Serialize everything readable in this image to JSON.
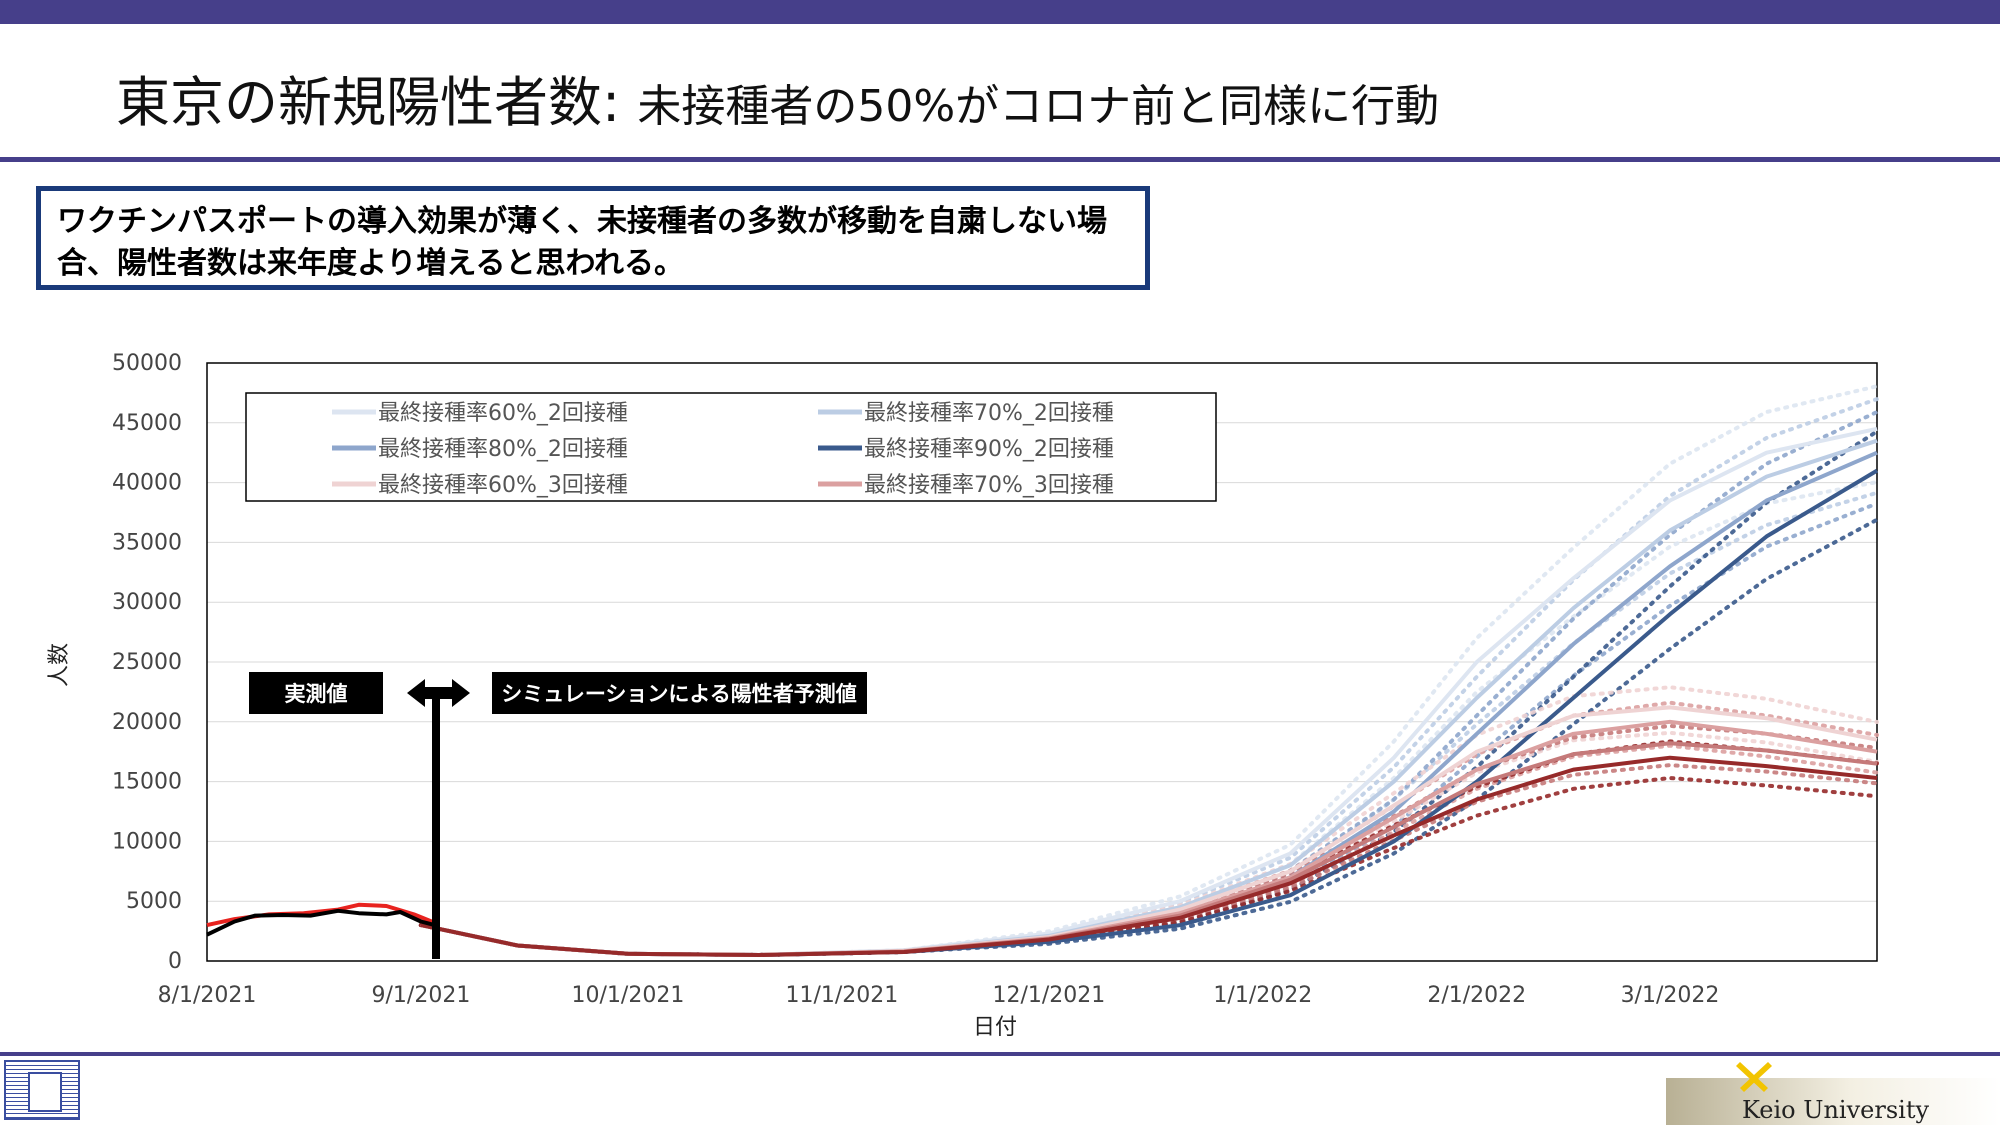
{
  "title": {
    "main": "東京の新規陽性者数: ",
    "sub": "未接種者の50%がコロナ前と同様に行動"
  },
  "callout": {
    "line1": "ワクチンパスポートの導入効果が薄く、未接種者の多数が移動を自粛しない場",
    "line2": "合、陽性者数は来年度より増えると思われる。"
  },
  "labels": {
    "measured": "実測値",
    "simulation": "シミュレーションによる陽性者予測値"
  },
  "footer": {
    "university": "Keio University"
  },
  "colors": {
    "accent_bar": "#463f8a",
    "callout_border": "#1a3a7a",
    "actual_red": "#e8231f",
    "actual_black": "#000000"
  },
  "chart_data": {
    "type": "line",
    "xlabel": "日付",
    "ylabel": "人数",
    "x_start": "2021-08-01",
    "x_end": "2022-03-31",
    "xticks": [
      "8/1/2021",
      "9/1/2021",
      "10/1/2021",
      "11/1/2021",
      "12/1/2021",
      "1/1/2022",
      "2/1/2022",
      "3/1/2022"
    ],
    "yticks": [
      0,
      5000,
      10000,
      15000,
      20000,
      25000,
      30000,
      35000,
      40000,
      45000,
      50000
    ],
    "ylim": [
      0,
      50000
    ],
    "grid": "horizontal",
    "legend_position": "top-left",
    "actual": [
      {
        "color": "#e8231f",
        "points": [
          [
            "2021-08-01",
            3000
          ],
          [
            "2021-08-05",
            3500
          ],
          [
            "2021-08-10",
            3900
          ],
          [
            "2021-08-15",
            4000
          ],
          [
            "2021-08-20",
            4300
          ],
          [
            "2021-08-23",
            4700
          ],
          [
            "2021-08-27",
            4600
          ],
          [
            "2021-08-31",
            3900
          ],
          [
            "2021-09-03",
            3200
          ]
        ]
      },
      {
        "color": "#000000",
        "points": [
          [
            "2021-08-01",
            2200
          ],
          [
            "2021-08-05",
            3300
          ],
          [
            "2021-08-08",
            3800
          ],
          [
            "2021-08-12",
            3850
          ],
          [
            "2021-08-16",
            3800
          ],
          [
            "2021-08-20",
            4200
          ],
          [
            "2021-08-23",
            4000
          ],
          [
            "2021-08-27",
            3900
          ],
          [
            "2021-08-29",
            4100
          ],
          [
            "2021-09-01",
            3300
          ],
          [
            "2021-09-03",
            3000
          ]
        ]
      }
    ],
    "series": [
      {
        "name": "最終接種率60%_2回接種",
        "color": "#dde5f1",
        "points": [
          [
            "2021-09-01",
            3000
          ],
          [
            "2021-09-15",
            1300
          ],
          [
            "2021-10-01",
            600
          ],
          [
            "2021-10-20",
            500
          ],
          [
            "2021-11-10",
            900
          ],
          [
            "2021-12-01",
            2300
          ],
          [
            "2021-12-20",
            5000
          ],
          [
            "2022-01-05",
            9000
          ],
          [
            "2022-01-20",
            17000
          ],
          [
            "2022-02-01",
            25000
          ],
          [
            "2022-02-15",
            32000
          ],
          [
            "2022-03-01",
            38500
          ],
          [
            "2022-03-15",
            42500
          ],
          [
            "2022-03-31",
            44500
          ]
        ]
      },
      {
        "name": "最終接種率70%_2回接種",
        "color": "#bccde4",
        "points": [
          [
            "2021-09-01",
            3000
          ],
          [
            "2021-09-15",
            1300
          ],
          [
            "2021-10-01",
            600
          ],
          [
            "2021-10-20",
            500
          ],
          [
            "2021-11-10",
            850
          ],
          [
            "2021-12-01",
            2100
          ],
          [
            "2021-12-20",
            4500
          ],
          [
            "2022-01-05",
            8000
          ],
          [
            "2022-01-20",
            15000
          ],
          [
            "2022-02-01",
            22000
          ],
          [
            "2022-02-15",
            29500
          ],
          [
            "2022-03-01",
            36000
          ],
          [
            "2022-03-15",
            40500
          ],
          [
            "2022-03-31",
            43500
          ]
        ]
      },
      {
        "name": "最終接種率80%_2回接種",
        "color": "#8ea6cc",
        "points": [
          [
            "2021-09-01",
            3000
          ],
          [
            "2021-09-15",
            1300
          ],
          [
            "2021-10-01",
            600
          ],
          [
            "2021-10-20",
            500
          ],
          [
            "2021-11-10",
            800
          ],
          [
            "2021-12-01",
            1900
          ],
          [
            "2021-12-20",
            3800
          ],
          [
            "2022-01-05",
            7000
          ],
          [
            "2022-01-20",
            12500
          ],
          [
            "2022-02-01",
            19000
          ],
          [
            "2022-02-15",
            26500
          ],
          [
            "2022-03-01",
            33000
          ],
          [
            "2022-03-15",
            38500
          ],
          [
            "2022-03-31",
            42500
          ]
        ]
      },
      {
        "name": "最終接種率90%_2回接種",
        "color": "#3a5a8c",
        "points": [
          [
            "2021-09-01",
            3000
          ],
          [
            "2021-09-15",
            1300
          ],
          [
            "2021-10-01",
            600
          ],
          [
            "2021-10-20",
            500
          ],
          [
            "2021-11-10",
            750
          ],
          [
            "2021-12-01",
            1600
          ],
          [
            "2021-12-20",
            3000
          ],
          [
            "2022-01-05",
            5500
          ],
          [
            "2022-01-20",
            10000
          ],
          [
            "2022-02-01",
            15000
          ],
          [
            "2022-02-15",
            22000
          ],
          [
            "2022-03-01",
            29000
          ],
          [
            "2022-03-15",
            35500
          ],
          [
            "2022-03-31",
            41000
          ]
        ]
      },
      {
        "name": "最終接種率60%_3回接種",
        "color": "#efd3d3",
        "points": [
          [
            "2021-09-01",
            3000
          ],
          [
            "2021-09-15",
            1300
          ],
          [
            "2021-10-01",
            600
          ],
          [
            "2021-10-20",
            500
          ],
          [
            "2021-11-10",
            850
          ],
          [
            "2021-12-01",
            2000
          ],
          [
            "2021-12-20",
            4300
          ],
          [
            "2022-01-05",
            7500
          ],
          [
            "2022-01-20",
            13000
          ],
          [
            "2022-02-01",
            17500
          ],
          [
            "2022-02-15",
            20500
          ],
          [
            "2022-03-01",
            21200
          ],
          [
            "2022-03-15",
            20300
          ],
          [
            "2022-03-31",
            18500
          ]
        ]
      },
      {
        "name": "最終接種率70%_3回接種",
        "color": "#dba0a0",
        "points": [
          [
            "2021-09-01",
            3000
          ],
          [
            "2021-09-15",
            1300
          ],
          [
            "2021-10-01",
            600
          ],
          [
            "2021-10-20",
            500
          ],
          [
            "2021-11-10",
            800
          ],
          [
            "2021-12-01",
            1900
          ],
          [
            "2021-12-20",
            4000
          ],
          [
            "2022-01-05",
            7000
          ],
          [
            "2022-01-20",
            12000
          ],
          [
            "2022-02-01",
            16000
          ],
          [
            "2022-02-15",
            19000
          ],
          [
            "2022-03-01",
            20000
          ],
          [
            "2022-03-15",
            19000
          ],
          [
            "2022-03-31",
            17500
          ]
        ]
      },
      {
        "name": "",
        "color": "#c57a7a",
        "points": [
          [
            "2021-09-01",
            3000
          ],
          [
            "2021-09-15",
            1300
          ],
          [
            "2021-10-01",
            600
          ],
          [
            "2021-10-20",
            500
          ],
          [
            "2021-11-10",
            780
          ],
          [
            "2021-12-01",
            1850
          ],
          [
            "2021-12-20",
            3800
          ],
          [
            "2022-01-05",
            6800
          ],
          [
            "2022-01-20",
            11200
          ],
          [
            "2022-02-01",
            14800
          ],
          [
            "2022-02-15",
            17300
          ],
          [
            "2022-03-01",
            18200
          ],
          [
            "2022-03-15",
            17600
          ],
          [
            "2022-03-31",
            16500
          ]
        ]
      },
      {
        "name": "",
        "color": "#962a2a",
        "points": [
          [
            "2021-09-01",
            3000
          ],
          [
            "2021-09-15",
            1300
          ],
          [
            "2021-10-01",
            600
          ],
          [
            "2021-10-20",
            500
          ],
          [
            "2021-11-10",
            750
          ],
          [
            "2021-12-01",
            1800
          ],
          [
            "2021-12-20",
            3600
          ],
          [
            "2022-01-05",
            6500
          ],
          [
            "2022-01-20",
            10500
          ],
          [
            "2022-02-01",
            13500
          ],
          [
            "2022-02-15",
            16000
          ],
          [
            "2022-03-01",
            17000
          ],
          [
            "2022-03-15",
            16300
          ],
          [
            "2022-03-31",
            15300
          ]
        ]
      }
    ]
  }
}
